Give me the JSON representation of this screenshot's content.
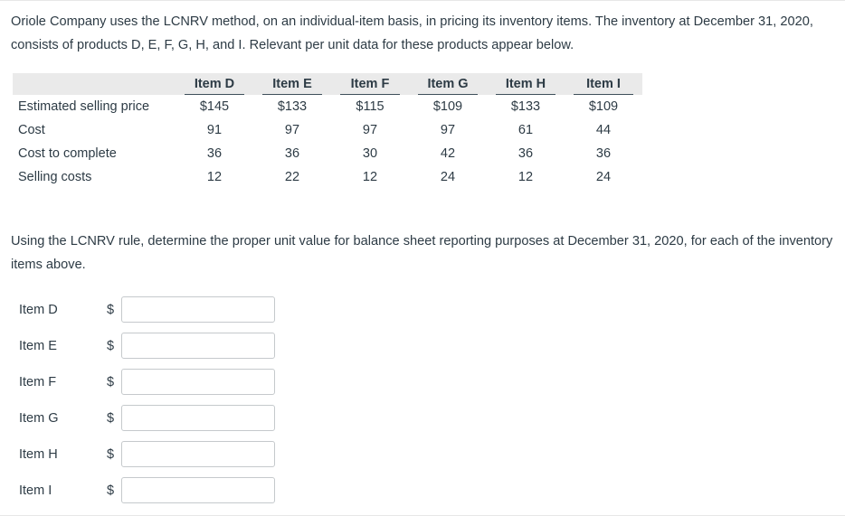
{
  "page": {
    "problem_statement": "Oriole Company uses the LCNRV method, on an individual-item basis, in pricing its inventory items. The inventory at December 31, 2020, consists of products D, E, F, G, H, and I. Relevant per unit data for these products appear below.",
    "instruction": "Using the LCNRV rule, determine the proper unit value for balance sheet reporting purposes at December 31, 2020, for each of the inventory items above."
  },
  "table": {
    "columns": [
      "Item D",
      "Item E",
      "Item F",
      "Item G",
      "Item H",
      "Item I"
    ],
    "rows": [
      {
        "label": "Estimated selling price",
        "values": [
          "$145",
          "$133",
          "$115",
          "$109",
          "$133",
          "$109"
        ]
      },
      {
        "label": "Cost",
        "values": [
          "91",
          "97",
          "97",
          "97",
          "61",
          "44"
        ]
      },
      {
        "label": "Cost to complete",
        "values": [
          "36",
          "36",
          "30",
          "42",
          "36",
          "36"
        ]
      },
      {
        "label": "Selling costs",
        "values": [
          "12",
          "22",
          "12",
          "24",
          "12",
          "24"
        ]
      }
    ]
  },
  "answers": {
    "currency_symbol": "$",
    "fields": [
      {
        "label": "Item D",
        "value": ""
      },
      {
        "label": "Item E",
        "value": ""
      },
      {
        "label": "Item F",
        "value": ""
      },
      {
        "label": "Item G",
        "value": ""
      },
      {
        "label": "Item H",
        "value": ""
      },
      {
        "label": "Item I",
        "value": ""
      }
    ]
  },
  "colors": {
    "text": "#2d3b45",
    "table_header_bg": "#eaeaea",
    "header_underline": "#3f4f5a",
    "input_border": "#c5c9cc",
    "page_divider": "#e7e7e7"
  }
}
